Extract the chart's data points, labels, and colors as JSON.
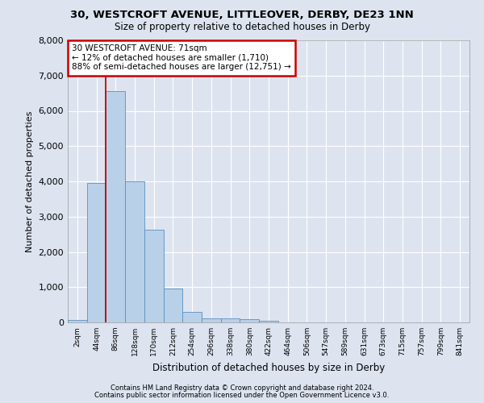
{
  "title_line1": "30, WESTCROFT AVENUE, LITTLEOVER, DERBY, DE23 1NN",
  "title_line2": "Size of property relative to detached houses in Derby",
  "xlabel": "Distribution of detached houses by size in Derby",
  "ylabel": "Number of detached properties",
  "bar_categories": [
    "2sqm",
    "44sqm",
    "86sqm",
    "128sqm",
    "170sqm",
    "212sqm",
    "254sqm",
    "296sqm",
    "338sqm",
    "380sqm",
    "422sqm",
    "464sqm",
    "506sqm",
    "547sqm",
    "589sqm",
    "631sqm",
    "673sqm",
    "715sqm",
    "757sqm",
    "799sqm",
    "841sqm"
  ],
  "bar_values": [
    80,
    3950,
    6550,
    4000,
    2620,
    950,
    300,
    120,
    110,
    90,
    50,
    0,
    0,
    0,
    0,
    0,
    0,
    0,
    0,
    0,
    0
  ],
  "bar_color": "#b8d0e8",
  "bar_edge_color": "#5a8fc0",
  "ylim": [
    0,
    8000
  ],
  "yticks": [
    0,
    1000,
    2000,
    3000,
    4000,
    5000,
    6000,
    7000,
    8000
  ],
  "vline_x": 1.5,
  "annotation_text": "30 WESTCROFT AVENUE: 71sqm\n← 12% of detached houses are smaller (1,710)\n88% of semi-detached houses are larger (12,751) →",
  "annotation_box_color": "#ffffff",
  "annotation_box_edge": "#cc0000",
  "vline_color": "#cc0000",
  "bg_color": "#dde4f0",
  "plot_bg_color": "#dde4f0",
  "grid_color": "#ffffff",
  "footer_line1": "Contains HM Land Registry data © Crown copyright and database right 2024.",
  "footer_line2": "Contains public sector information licensed under the Open Government Licence v3.0."
}
